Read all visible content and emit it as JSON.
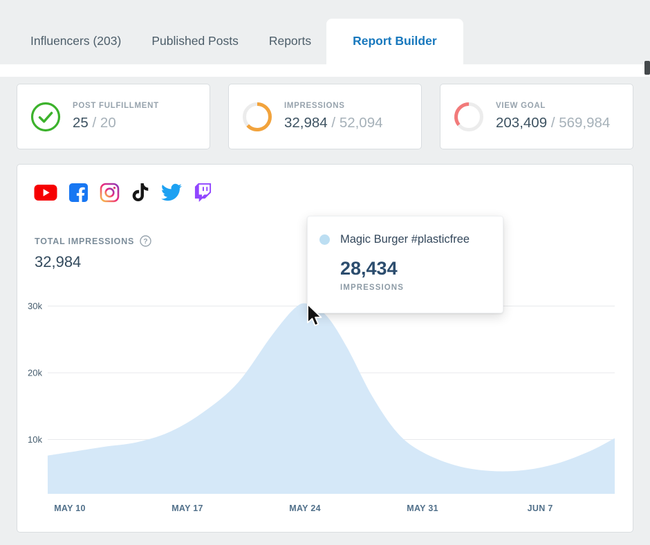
{
  "colors": {
    "accent_blue": "#1878bd",
    "success_green": "#3cb22c",
    "warning_orange": "#f2a33c",
    "danger_pink": "#f27a7a",
    "chart_fill": "#d5e8f8",
    "tooltip_dot": "#bcdef2"
  },
  "tabs": {
    "items": [
      {
        "label": "Influencers (203)"
      },
      {
        "label": "Published Posts"
      },
      {
        "label": "Reports"
      },
      {
        "label": "Report Builder"
      }
    ],
    "active": "Report Builder"
  },
  "stat_cards": [
    {
      "label": "POST FULFILLMENT",
      "value": "25",
      "sep": "/",
      "target": "20",
      "color": "#3cb22c",
      "fraction": 1,
      "icon": "check-circle-icon"
    },
    {
      "label": "IMPRESSIONS",
      "value": "32,984",
      "sep": "/",
      "target": "52,094",
      "color": "#f2a33c",
      "fraction": 0.633,
      "icon": "progress-ring-icon"
    },
    {
      "label": "VIEW GOAL",
      "value": "203,409",
      "sep": "/",
      "target": "569,984",
      "color": "#f27a7a",
      "fraction": 0.357,
      "reverse": true,
      "icon": "progress-ring-icon"
    }
  ],
  "platform_icons": [
    "youtube-icon",
    "facebook-icon",
    "instagram-icon",
    "tiktok-icon",
    "twitter-icon",
    "twitch-icon"
  ],
  "chart_header": {
    "title": "TOTAL IMPRESSIONS",
    "help_glyph": "?",
    "value": "32,984"
  },
  "tooltip": {
    "series_label": "Magic Burger #plasticfree",
    "value": "28,434",
    "metric": "IMPRESSIONS",
    "dot_color": "#bcdef2"
  },
  "chart_data": {
    "type": "area",
    "title": "TOTAL IMPRESSIONS",
    "total": 32984,
    "fill_color": "#d5e8f8",
    "grid": true,
    "legend": false,
    "x_ticks": [
      {
        "label": "MAY 10",
        "day": 0
      },
      {
        "label": "MAY 17",
        "day": 7
      },
      {
        "label": "MAY 24",
        "day": 14
      },
      {
        "label": "MAY 31",
        "day": 21
      },
      {
        "label": "JUN 7",
        "day": 28
      }
    ],
    "y_ticks": [
      {
        "label": "10k",
        "value": 10000
      },
      {
        "label": "20k",
        "value": 20000
      },
      {
        "label": "30k",
        "value": 30000
      }
    ],
    "ylim": [
      0,
      33000
    ],
    "hovered_point": {
      "series": "Magic Burger #plasticfree",
      "impressions": 28434
    },
    "series": [
      {
        "name": "Magic Burger #plasticfree",
        "points": [
          [
            -1.32,
            7600
          ],
          [
            0,
            8100
          ],
          [
            2,
            8900
          ],
          [
            4,
            9600
          ],
          [
            6,
            11200
          ],
          [
            8,
            14200
          ],
          [
            10,
            18500
          ],
          [
            12,
            25500
          ],
          [
            13.4,
            29700
          ],
          [
            14.2,
            30300
          ],
          [
            15.3,
            28500
          ],
          [
            16.5,
            23800
          ],
          [
            18,
            16500
          ],
          [
            19.5,
            11000
          ],
          [
            21,
            8100
          ],
          [
            23,
            6100
          ],
          [
            25,
            5300
          ],
          [
            27,
            5400
          ],
          [
            29,
            6400
          ],
          [
            31,
            8300
          ],
          [
            32.44,
            10200
          ]
        ]
      }
    ]
  }
}
